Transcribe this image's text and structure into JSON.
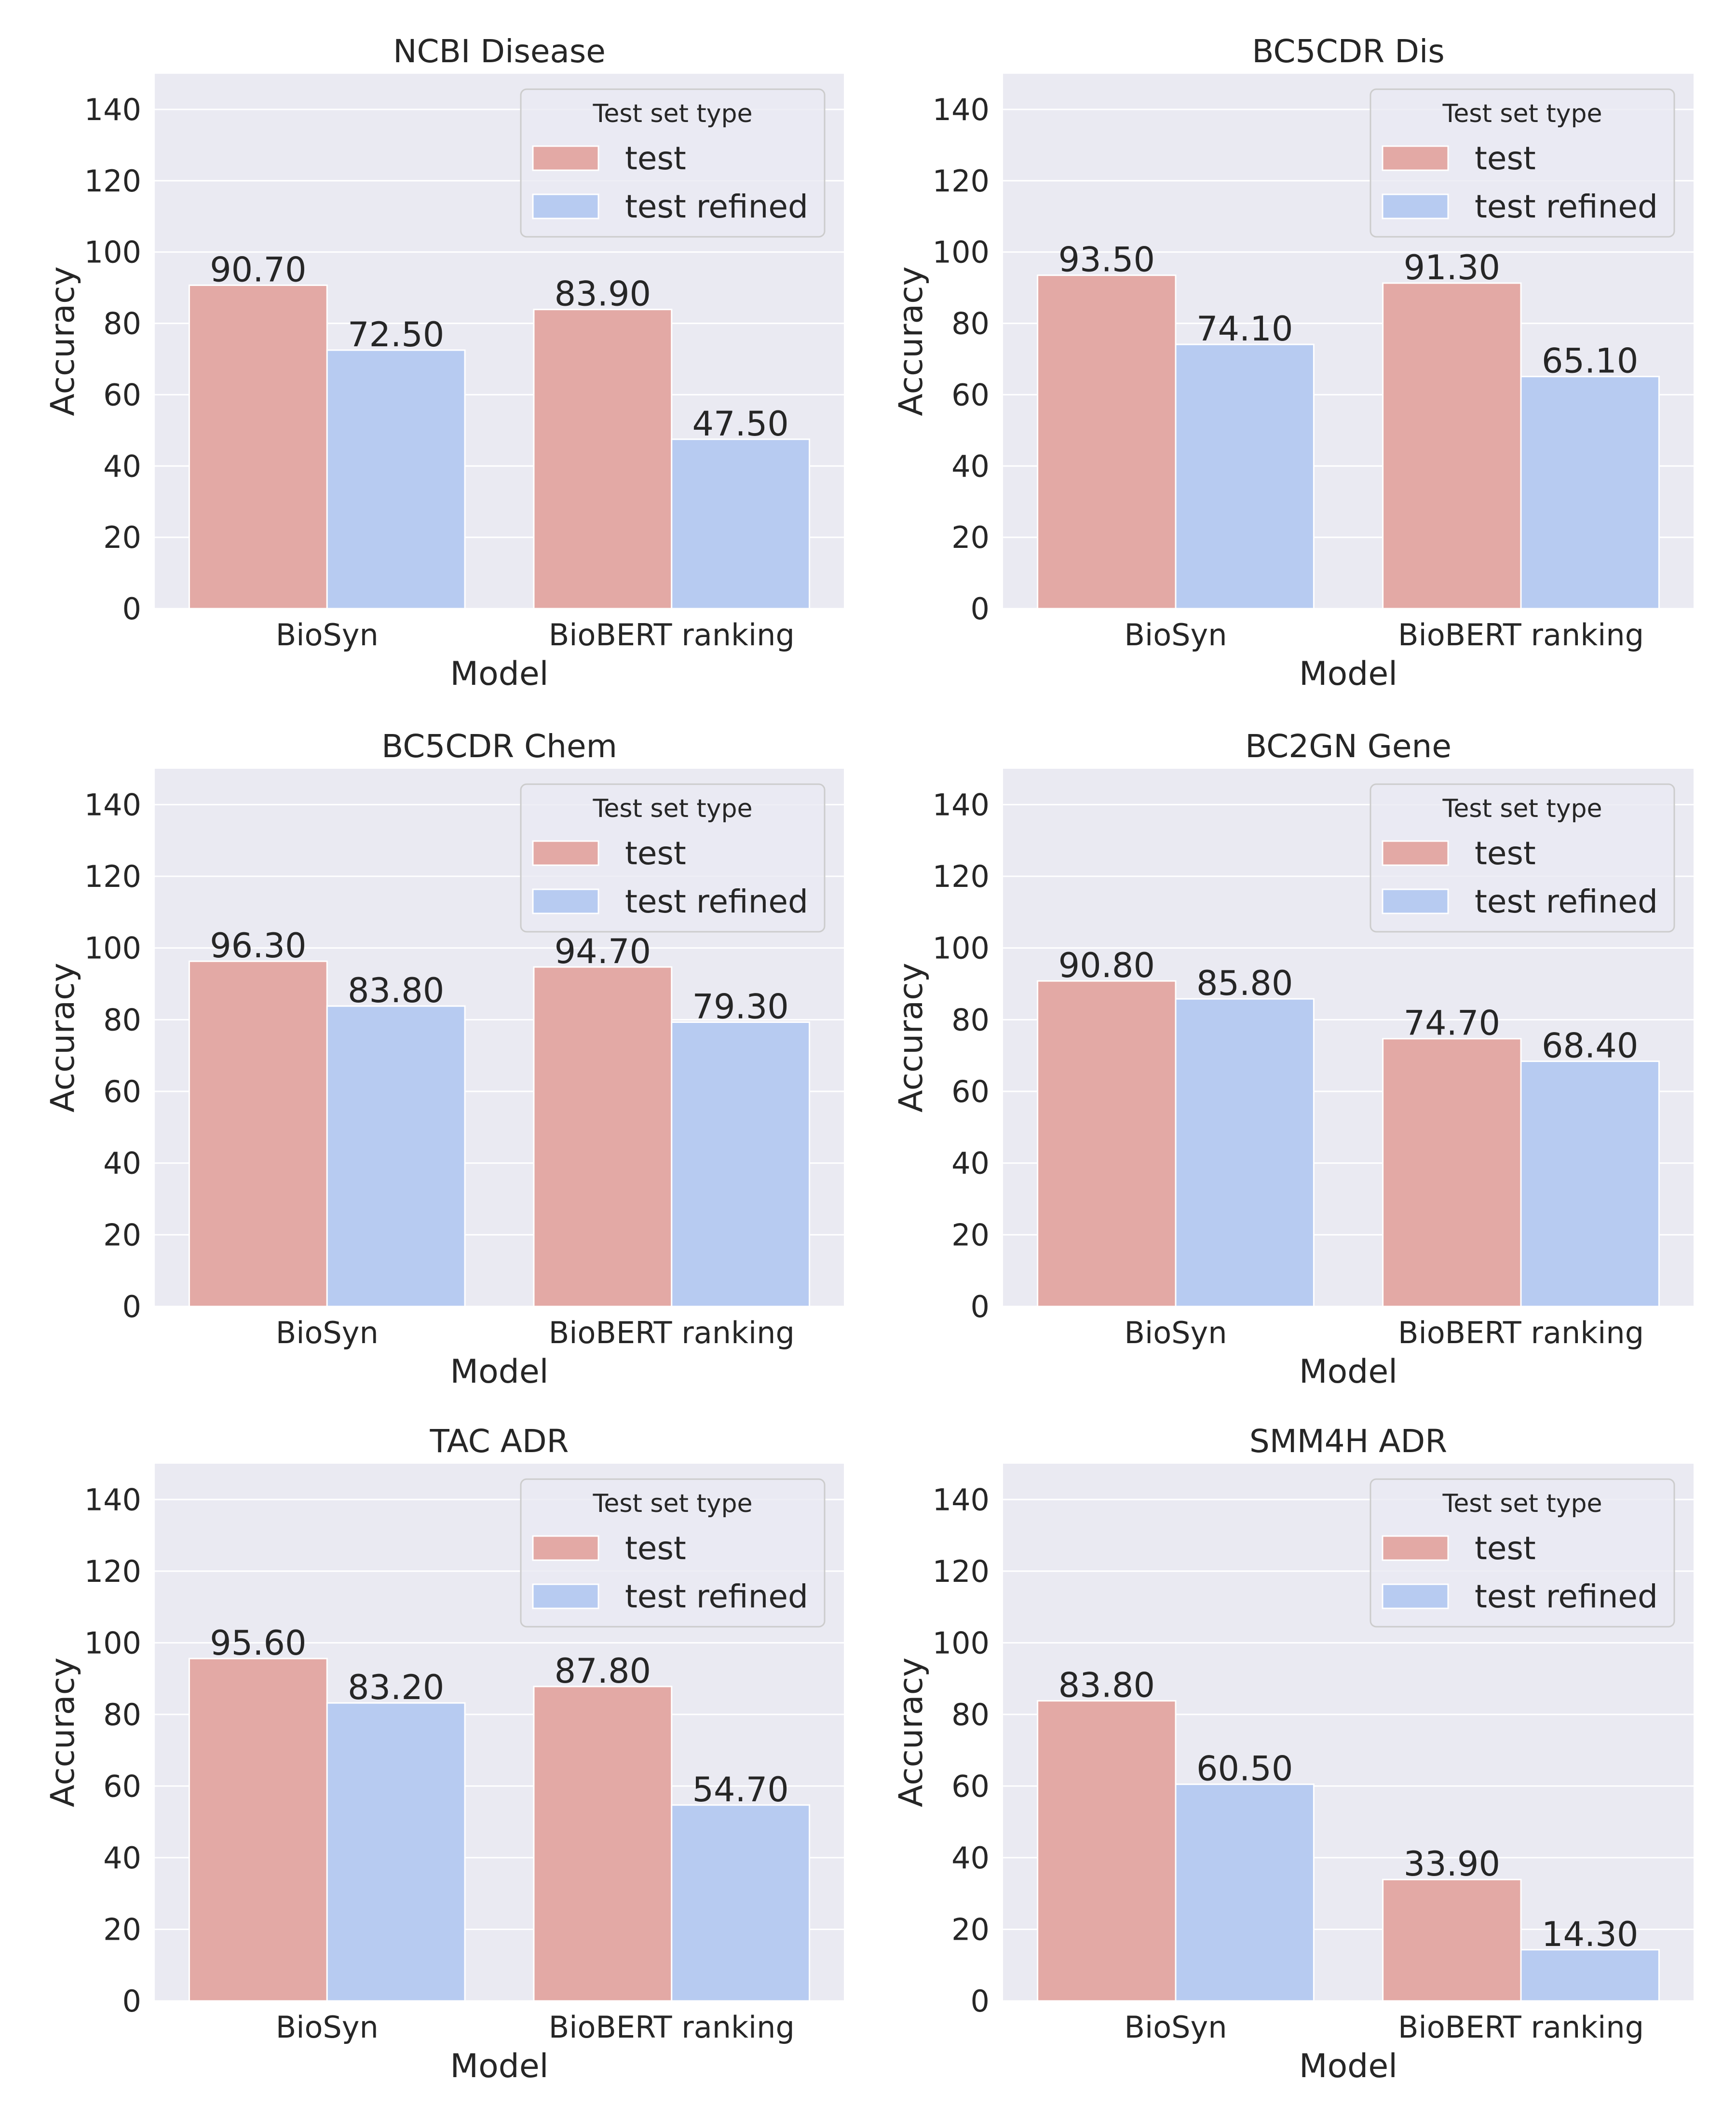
{
  "figure": {
    "background": "#ffffff",
    "axes_facecolor": "#eaeaf2",
    "grid_color": "#ffffff",
    "text_color": "#262626"
  },
  "chart_data": [
    {
      "type": "bar",
      "title": "NCBI Disease",
      "xlabel": "Model",
      "ylabel": "Accuracy",
      "categories": [
        "BioSyn",
        "BioBERT ranking"
      ],
      "ylim": [
        0,
        150
      ],
      "yticks": [
        0,
        20,
        40,
        60,
        80,
        100,
        120,
        140
      ],
      "grid": true,
      "legend": {
        "title": "Test set type",
        "placement": "top-right"
      },
      "series": [
        {
          "name": "test",
          "color": "#e3a9a5",
          "values": [
            90.7,
            83.9
          ],
          "labels": [
            "90.70",
            "83.90"
          ]
        },
        {
          "name": "test refined",
          "color": "#b7cbf1",
          "values": [
            72.5,
            47.5
          ],
          "labels": [
            "72.50",
            "47.50"
          ]
        }
      ]
    },
    {
      "type": "bar",
      "title": "BC5CDR Dis",
      "xlabel": "Model",
      "ylabel": "Accuracy",
      "categories": [
        "BioSyn",
        "BioBERT ranking"
      ],
      "ylim": [
        0,
        150
      ],
      "yticks": [
        0,
        20,
        40,
        60,
        80,
        100,
        120,
        140
      ],
      "grid": true,
      "legend": {
        "title": "Test set type",
        "placement": "top-right"
      },
      "series": [
        {
          "name": "test",
          "color": "#e3a9a5",
          "values": [
            93.5,
            91.3
          ],
          "labels": [
            "93.50",
            "91.30"
          ]
        },
        {
          "name": "test refined",
          "color": "#b7cbf1",
          "values": [
            74.1,
            65.1
          ],
          "labels": [
            "74.10",
            "65.10"
          ]
        }
      ]
    },
    {
      "type": "bar",
      "title": "BC5CDR Chem",
      "xlabel": "Model",
      "ylabel": "Accuracy",
      "categories": [
        "BioSyn",
        "BioBERT ranking"
      ],
      "ylim": [
        0,
        150
      ],
      "yticks": [
        0,
        20,
        40,
        60,
        80,
        100,
        120,
        140
      ],
      "grid": true,
      "legend": {
        "title": "Test set type",
        "placement": "top-right"
      },
      "series": [
        {
          "name": "test",
          "color": "#e3a9a5",
          "values": [
            96.3,
            94.7
          ],
          "labels": [
            "96.30",
            "94.70"
          ]
        },
        {
          "name": "test refined",
          "color": "#b7cbf1",
          "values": [
            83.8,
            79.3
          ],
          "labels": [
            "83.80",
            "79.30"
          ]
        }
      ]
    },
    {
      "type": "bar",
      "title": "BC2GN Gene",
      "xlabel": "Model",
      "ylabel": "Accuracy",
      "categories": [
        "BioSyn",
        "BioBERT ranking"
      ],
      "ylim": [
        0,
        150
      ],
      "yticks": [
        0,
        20,
        40,
        60,
        80,
        100,
        120,
        140
      ],
      "grid": true,
      "legend": {
        "title": "Test set type",
        "placement": "top-right"
      },
      "series": [
        {
          "name": "test",
          "color": "#e3a9a5",
          "values": [
            90.8,
            74.7
          ],
          "labels": [
            "90.80",
            "74.70"
          ]
        },
        {
          "name": "test refined",
          "color": "#b7cbf1",
          "values": [
            85.8,
            68.4
          ],
          "labels": [
            "85.80",
            "68.40"
          ]
        }
      ]
    },
    {
      "type": "bar",
      "title": "TAC ADR",
      "xlabel": "Model",
      "ylabel": "Accuracy",
      "categories": [
        "BioSyn",
        "BioBERT ranking"
      ],
      "ylim": [
        0,
        150
      ],
      "yticks": [
        0,
        20,
        40,
        60,
        80,
        100,
        120,
        140
      ],
      "grid": true,
      "legend": {
        "title": "Test set type",
        "placement": "top-right"
      },
      "series": [
        {
          "name": "test",
          "color": "#e3a9a5",
          "values": [
            95.6,
            87.8
          ],
          "labels": [
            "95.60",
            "87.80"
          ]
        },
        {
          "name": "test refined",
          "color": "#b7cbf1",
          "values": [
            83.2,
            54.7
          ],
          "labels": [
            "83.20",
            "54.70"
          ]
        }
      ]
    },
    {
      "type": "bar",
      "title": "SMM4H ADR",
      "xlabel": "Model",
      "ylabel": "Accuracy",
      "categories": [
        "BioSyn",
        "BioBERT ranking"
      ],
      "ylim": [
        0,
        150
      ],
      "yticks": [
        0,
        20,
        40,
        60,
        80,
        100,
        120,
        140
      ],
      "grid": true,
      "legend": {
        "title": "Test set type",
        "placement": "top-right"
      },
      "series": [
        {
          "name": "test",
          "color": "#e3a9a5",
          "values": [
            83.8,
            33.9
          ],
          "labels": [
            "83.80",
            "33.90"
          ]
        },
        {
          "name": "test refined",
          "color": "#b7cbf1",
          "values": [
            60.5,
            14.3
          ],
          "labels": [
            "60.50",
            "14.30"
          ]
        }
      ]
    }
  ]
}
